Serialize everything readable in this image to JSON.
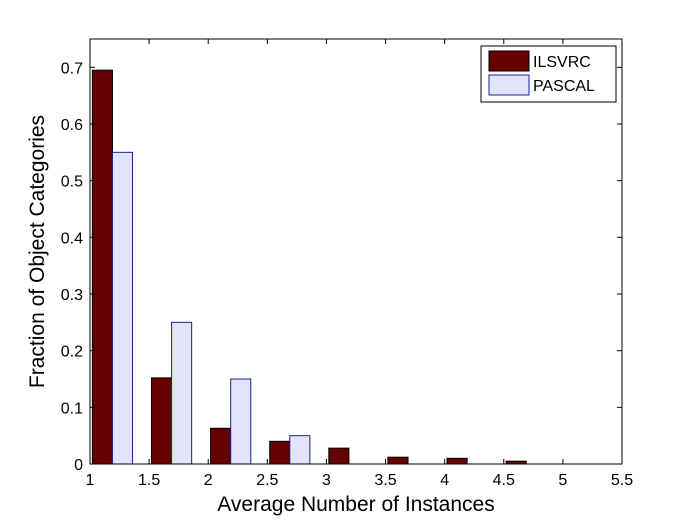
{
  "chart_data": {
    "type": "bar",
    "xlabel": "Average Number of Instances",
    "ylabel": "Fraction of Object Categories",
    "xlim": [
      1,
      5.5
    ],
    "ylim": [
      0,
      0.75
    ],
    "xticks": [
      1,
      1.5,
      2,
      2.5,
      3,
      3.5,
      4,
      4.5,
      5,
      5.5
    ],
    "xtick_labels": [
      "1",
      "1.5",
      "2",
      "2.5",
      "3",
      "3.5",
      "4",
      "4.5",
      "5",
      "5.5"
    ],
    "yticks": [
      0,
      0.1,
      0.2,
      0.3,
      0.4,
      0.5,
      0.6,
      0.7
    ],
    "ytick_labels": [
      "0",
      "0.1",
      "0.2",
      "0.3",
      "0.4",
      "0.5",
      "0.6",
      "0.7"
    ],
    "grid": false,
    "legend_position": "top-right",
    "bin_centers": [
      1.25,
      1.75,
      2.25,
      2.75,
      3.25,
      3.75,
      4.25,
      4.75,
      5.25
    ],
    "series": [
      {
        "name": "ILSVRC",
        "color": "#660000",
        "edge_color": "#000000",
        "values": [
          0.695,
          0.152,
          0.063,
          0.04,
          0.028,
          0.012,
          0.01,
          0.005,
          0.0
        ]
      },
      {
        "name": "PASCAL",
        "color": "#e2e4f8",
        "edge_color": "#1f1f8f",
        "values": [
          0.55,
          0.25,
          0.15,
          0.05,
          0.0,
          0.0,
          0.0,
          0.0,
          0.0
        ]
      }
    ]
  }
}
